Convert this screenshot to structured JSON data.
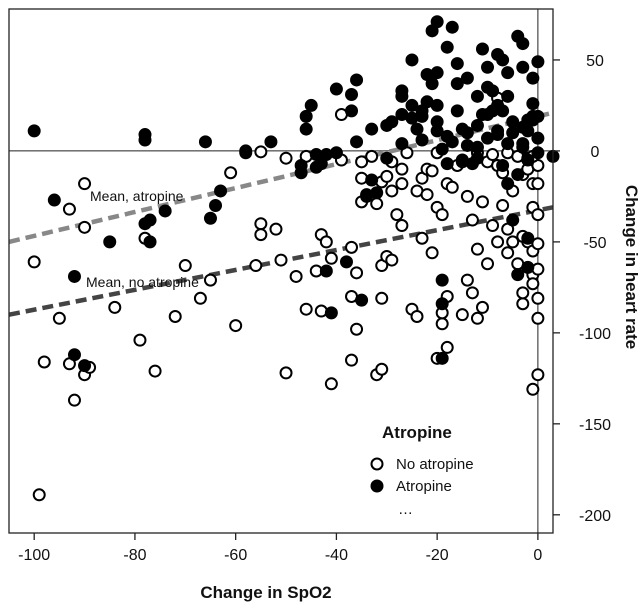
{
  "chart_data": {
    "type": "scatter",
    "xlabel": "Change in SpO2",
    "ylabel": "Change in heart rate",
    "xlim": [
      -105,
      3
    ],
    "ylim": [
      -210,
      78
    ],
    "x_ticks": [
      -100,
      -80,
      -60,
      -40,
      -20,
      0
    ],
    "y_ticks": [
      50,
      0,
      -50,
      -100,
      -150,
      -200
    ],
    "x_tick_labels": [
      "-100",
      "-80",
      "-60",
      "-40",
      "-20",
      "0"
    ],
    "y_tick_labels": [
      "50",
      "0",
      "-50",
      "-100",
      "-150",
      "-200"
    ],
    "reference_lines": {
      "x": 0,
      "y": 0
    },
    "legend": {
      "title": "Atropine",
      "placement": "bottom-right",
      "entries": [
        {
          "label": "No atropine",
          "marker": "open-circle"
        },
        {
          "label": "Atropine",
          "marker": "filled-circle"
        },
        {
          "label": "…",
          "marker": "none"
        }
      ]
    },
    "trend_lines": [
      {
        "label": "Mean, atropine",
        "color": "#888888",
        "x": [
          -105,
          3
        ],
        "y": [
          -50,
          21
        ]
      },
      {
        "label": "Mean, no atropine",
        "color": "#444444",
        "x": [
          -105,
          3
        ],
        "y": [
          -90,
          -31
        ]
      }
    ],
    "series": [
      {
        "name": "No atropine",
        "marker": "open",
        "points": [
          [
            -100,
            -61
          ],
          [
            -99,
            -189
          ],
          [
            -98,
            -116
          ],
          [
            -95,
            -92
          ],
          [
            -93,
            -117
          ],
          [
            -93,
            -32
          ],
          [
            -92,
            -137
          ],
          [
            -90,
            -18
          ],
          [
            -90,
            -123
          ],
          [
            -90,
            -42
          ],
          [
            -89,
            -119
          ],
          [
            -84,
            -86
          ],
          [
            -79,
            -104
          ],
          [
            -78,
            -48
          ],
          [
            -76,
            -121
          ],
          [
            -72,
            -91
          ],
          [
            -70,
            -63
          ],
          [
            -67,
            -81
          ],
          [
            -65,
            -71
          ],
          [
            -61,
            -12
          ],
          [
            -60,
            -96
          ],
          [
            -56,
            -63
          ],
          [
            -55,
            -0.5
          ],
          [
            -55,
            -40
          ],
          [
            -55,
            -46
          ],
          [
            -52,
            -43
          ],
          [
            -51,
            -60
          ],
          [
            -50,
            -122
          ],
          [
            -50,
            -4
          ],
          [
            -48,
            -69
          ],
          [
            -46,
            -87
          ],
          [
            -44,
            -66
          ],
          [
            -43,
            -88
          ],
          [
            -43,
            -46
          ],
          [
            -42,
            -50
          ],
          [
            -41,
            -59
          ],
          [
            -41,
            -128
          ],
          [
            -39,
            -5
          ],
          [
            -37,
            -115
          ],
          [
            -37,
            -80
          ],
          [
            -37,
            -53
          ],
          [
            -36,
            -67
          ],
          [
            -36,
            -98
          ],
          [
            -35,
            -15
          ],
          [
            -35,
            -6
          ],
          [
            -35,
            -28
          ],
          [
            -34,
            -25
          ],
          [
            -33,
            -3
          ],
          [
            -32,
            -29
          ],
          [
            -32,
            -123
          ],
          [
            -31,
            -81
          ],
          [
            -31,
            -17
          ],
          [
            -31,
            -63
          ],
          [
            -31,
            -120
          ],
          [
            -30,
            -14
          ],
          [
            -30,
            -58
          ],
          [
            -29,
            -22
          ],
          [
            -29,
            -6
          ],
          [
            -28,
            -35
          ],
          [
            -27,
            -41
          ],
          [
            -27,
            -18
          ],
          [
            -27,
            -10
          ],
          [
            -26,
            -1
          ],
          [
            -25,
            -87
          ],
          [
            -24,
            -22
          ],
          [
            -24,
            -91
          ],
          [
            -23,
            -48
          ],
          [
            -23,
            -15
          ],
          [
            -22,
            -24
          ],
          [
            -22,
            -10
          ],
          [
            -21,
            -11
          ],
          [
            -21,
            -56
          ],
          [
            -20,
            -31
          ],
          [
            -20,
            -1
          ],
          [
            -20,
            -114
          ],
          [
            -19,
            -95
          ],
          [
            -19,
            -89
          ],
          [
            -19,
            -35
          ],
          [
            -18,
            -80
          ],
          [
            -18,
            -18
          ],
          [
            -18,
            -108
          ],
          [
            -17,
            -20
          ],
          [
            -16,
            -8
          ],
          [
            -15,
            -6
          ],
          [
            -14,
            -25
          ],
          [
            -14,
            -71
          ],
          [
            -13,
            -38
          ],
          [
            -13,
            -78
          ],
          [
            -12,
            -1
          ],
          [
            -12,
            -54
          ],
          [
            -12,
            -92
          ],
          [
            -11,
            -86
          ],
          [
            -11,
            -28
          ],
          [
            -10,
            -62
          ],
          [
            -10,
            -6
          ],
          [
            -9,
            -2
          ],
          [
            -9,
            -41
          ],
          [
            -8,
            -50
          ],
          [
            -8,
            -8
          ],
          [
            -8,
            29
          ],
          [
            -7,
            -30
          ],
          [
            -7,
            -12
          ],
          [
            -6,
            -1
          ],
          [
            -6,
            -56
          ],
          [
            -6,
            -43
          ],
          [
            -5,
            -50
          ],
          [
            -4,
            -62
          ],
          [
            -4,
            -3
          ],
          [
            -3,
            -84
          ],
          [
            -3,
            -78
          ],
          [
            -3,
            -47
          ],
          [
            -3,
            -13
          ],
          [
            -2,
            -50
          ],
          [
            -2,
            -10
          ],
          [
            -2,
            -4
          ],
          [
            -1,
            -18
          ],
          [
            -1,
            -68
          ],
          [
            -1,
            -73
          ],
          [
            -1,
            -31
          ],
          [
            -1,
            -55
          ],
          [
            -1,
            -131
          ],
          [
            0,
            -65
          ],
          [
            0,
            -81
          ],
          [
            0,
            -92
          ],
          [
            0,
            -35
          ],
          [
            0,
            -51
          ],
          [
            0,
            -8
          ],
          [
            0,
            -18
          ],
          [
            0,
            -123
          ],
          [
            -29,
            -60
          ],
          [
            -15,
            -90
          ],
          [
            -46,
            -3
          ],
          [
            -39,
            20
          ],
          [
            -58,
            0
          ],
          [
            -5,
            -22
          ],
          [
            -1,
            -3
          ]
        ]
      },
      {
        "name": "Atropine",
        "marker": "filled",
        "points": [
          [
            -100,
            11
          ],
          [
            -96,
            -27
          ],
          [
            -92,
            -69
          ],
          [
            -92,
            -112
          ],
          [
            -90,
            -118
          ],
          [
            -85,
            -50
          ],
          [
            -78,
            6
          ],
          [
            -78,
            9
          ],
          [
            -78,
            -40
          ],
          [
            -77,
            -38
          ],
          [
            -77,
            -50
          ],
          [
            -74,
            -33
          ],
          [
            -66,
            5
          ],
          [
            -65,
            -37
          ],
          [
            -64,
            -30
          ],
          [
            -63,
            -22
          ],
          [
            -58,
            -1
          ],
          [
            -53,
            5
          ],
          [
            -47,
            -12
          ],
          [
            -47,
            -8
          ],
          [
            -46,
            12
          ],
          [
            -46,
            19
          ],
          [
            -45,
            25
          ],
          [
            -44,
            -9
          ],
          [
            -44,
            -2
          ],
          [
            -43,
            -7
          ],
          [
            -42,
            -66
          ],
          [
            -42,
            -2
          ],
          [
            -41,
            -89
          ],
          [
            -40,
            34
          ],
          [
            -40,
            -1
          ],
          [
            -38,
            -61
          ],
          [
            -37,
            22
          ],
          [
            -37,
            31
          ],
          [
            -36,
            5
          ],
          [
            -36,
            39
          ],
          [
            -35,
            -82
          ],
          [
            -34,
            -24
          ],
          [
            -33,
            12
          ],
          [
            -33,
            -16
          ],
          [
            -32,
            -23
          ],
          [
            -30,
            -4
          ],
          [
            -30,
            14
          ],
          [
            -29,
            16
          ],
          [
            -27,
            20
          ],
          [
            -27,
            4
          ],
          [
            -27,
            30
          ],
          [
            -27,
            33
          ],
          [
            -25,
            18
          ],
          [
            -25,
            25
          ],
          [
            -24,
            12
          ],
          [
            -23,
            6
          ],
          [
            -23,
            19
          ],
          [
            -22,
            27
          ],
          [
            -22,
            42
          ],
          [
            -21,
            37
          ],
          [
            -20,
            11
          ],
          [
            -20,
            16
          ],
          [
            -20,
            25
          ],
          [
            -20,
            43
          ],
          [
            -19,
            -71
          ],
          [
            -19,
            -84
          ],
          [
            -19,
            -114
          ],
          [
            -19,
            1
          ],
          [
            -18,
            8
          ],
          [
            -18,
            -7
          ],
          [
            -17,
            5
          ],
          [
            -16,
            22
          ],
          [
            -16,
            48
          ],
          [
            -15,
            12
          ],
          [
            -15,
            -5
          ],
          [
            -14,
            10
          ],
          [
            -14,
            40
          ],
          [
            -14,
            3
          ],
          [
            -13,
            -7
          ],
          [
            -12,
            -4
          ],
          [
            -12,
            2
          ],
          [
            -12,
            30
          ],
          [
            -11,
            56
          ],
          [
            -11,
            20
          ],
          [
            -10,
            35
          ],
          [
            -10,
            7
          ],
          [
            -10,
            20
          ],
          [
            -9,
            22
          ],
          [
            -8,
            9
          ],
          [
            -8,
            25
          ],
          [
            -8,
            11
          ],
          [
            -7,
            -8
          ],
          [
            -7,
            22
          ],
          [
            -6,
            4
          ],
          [
            -6,
            43
          ],
          [
            -6,
            -18
          ],
          [
            -5,
            16
          ],
          [
            -5,
            10
          ],
          [
            -5,
            -38
          ],
          [
            -4,
            -13
          ],
          [
            -4,
            -68
          ],
          [
            -4,
            63
          ],
          [
            -3,
            2
          ],
          [
            -3,
            4
          ],
          [
            -3,
            13
          ],
          [
            -3,
            46
          ],
          [
            -2,
            -48
          ],
          [
            -2,
            -64
          ],
          [
            -2,
            -5
          ],
          [
            -2,
            11
          ],
          [
            -2,
            17
          ],
          [
            -1,
            19
          ],
          [
            -1,
            26
          ],
          [
            -1,
            17
          ],
          [
            0,
            -1
          ],
          [
            0,
            49
          ],
          [
            0,
            7
          ],
          [
            0,
            19
          ],
          [
            3,
            -3
          ],
          [
            -8,
            53
          ],
          [
            -20,
            71
          ],
          [
            -21,
            66
          ],
          [
            -18,
            57
          ],
          [
            -7,
            50
          ],
          [
            -9,
            33
          ],
          [
            -16,
            37
          ],
          [
            -23,
            22
          ],
          [
            -10,
            46
          ],
          [
            -12,
            14
          ],
          [
            -6,
            30
          ],
          [
            -3,
            59
          ],
          [
            -25,
            50
          ],
          [
            -17,
            68
          ],
          [
            -1,
            40
          ]
        ]
      }
    ]
  },
  "annotations": {
    "atropine_mean": "Mean, atropine",
    "no_atropine_mean": "Mean, no atropine"
  }
}
